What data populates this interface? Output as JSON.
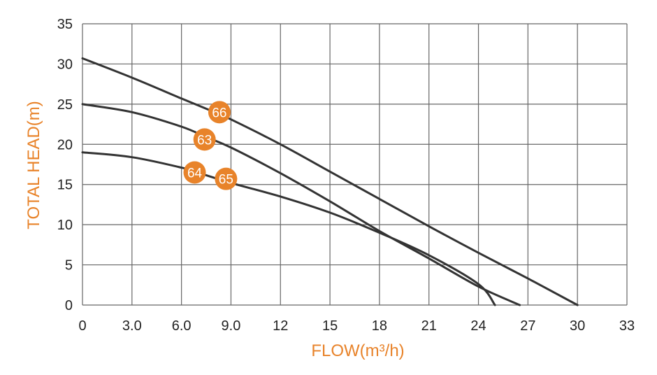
{
  "chart_data": {
    "type": "line",
    "title": "",
    "xlabel": "FLOW(m³/h)",
    "ylabel": "TOTAL HEAD(m)",
    "xlim": [
      0,
      33
    ],
    "ylim": [
      0,
      35
    ],
    "xticks": [
      0,
      3,
      6,
      9,
      12,
      15,
      18,
      21,
      24,
      27,
      30,
      33
    ],
    "xtick_labels": [
      "0",
      "3.0",
      "6.0",
      "9.0",
      "12",
      "15",
      "18",
      "21",
      "24",
      "27",
      "30",
      "33"
    ],
    "yticks": [
      0,
      5,
      10,
      15,
      20,
      25,
      30,
      35
    ],
    "ytick_labels": [
      "0",
      "5",
      "10",
      "15",
      "20",
      "25",
      "30",
      "35"
    ],
    "grid": true,
    "legend": "none",
    "colors": {
      "line": "#333333",
      "accent": "#E8832A",
      "grid": "#666666",
      "badge_text": "#ffffff"
    },
    "series": [
      {
        "x": [
          0,
          3,
          6,
          8,
          9,
          12,
          15,
          18,
          21,
          24,
          27,
          30
        ],
        "y": [
          30.7,
          28.3,
          25.7,
          24.0,
          23.1,
          20.0,
          16.6,
          13.2,
          9.8,
          6.5,
          3.3,
          0
        ]
      },
      {
        "x": [
          0,
          3,
          6,
          7.5,
          9,
          12,
          15,
          18,
          21,
          24,
          26.5
        ],
        "y": [
          25.0,
          24.0,
          22.2,
          20.9,
          19.6,
          16.4,
          12.9,
          9.2,
          5.8,
          2.3,
          0
        ]
      },
      {
        "x": [
          0,
          3,
          6,
          6.8,
          9,
          12,
          15,
          18,
          21,
          24,
          25
        ],
        "y": [
          19.0,
          18.4,
          17.1,
          16.6,
          15.2,
          13.5,
          11.5,
          9.0,
          6.2,
          2.6,
          0
        ]
      }
    ],
    "annotations": [
      {
        "text": "66",
        "x": 8.3,
        "y": 24.0
      },
      {
        "text": "63",
        "x": 7.4,
        "y": 20.6
      },
      {
        "text": "64",
        "x": 6.8,
        "y": 16.5
      },
      {
        "text": "65",
        "x": 8.7,
        "y": 15.7
      }
    ]
  }
}
